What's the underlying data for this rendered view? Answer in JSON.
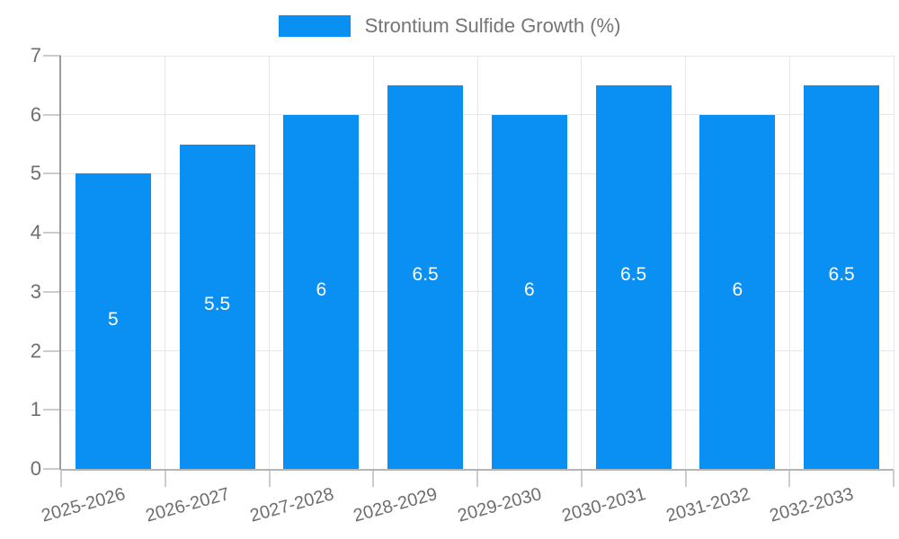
{
  "colors": {
    "bar": "#0a8ff2",
    "grid": "#e6e6e6",
    "y_axis_line": "#9b9b9b",
    "x_axis_line": "#b5b5b5",
    "tick": "#cccccc",
    "axis_text": "#6e6e6e",
    "legend_text": "#757575",
    "bar_label_text": "#ffffff"
  },
  "chart_data": {
    "type": "bar",
    "title": "",
    "xlabel": "",
    "ylabel": "",
    "categories": [
      "2025-2026",
      "2026-2027",
      "2027-2028",
      "2028-2029",
      "2029-2030",
      "2030-2031",
      "2031-2032",
      "2032-2033"
    ],
    "series": [
      {
        "name": "Strontium Sulfide Growth (%)",
        "values": [
          5,
          5.5,
          6,
          6.5,
          6,
          6.5,
          6,
          6.5
        ]
      }
    ],
    "ylim": [
      0,
      7
    ],
    "yticks": [
      0,
      1,
      2,
      3,
      4,
      5,
      6,
      7
    ],
    "grid": true,
    "data_labels_shown": true,
    "legend_position": "top-center"
  }
}
